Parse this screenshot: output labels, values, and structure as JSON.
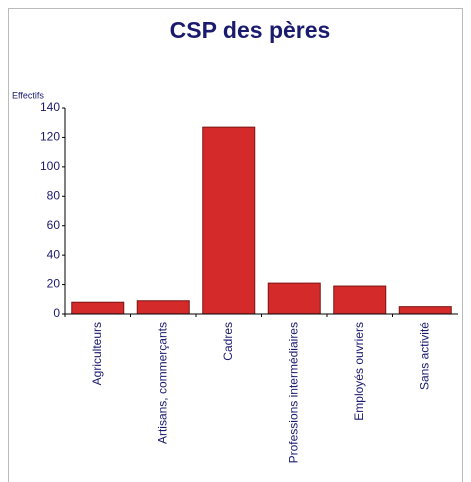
{
  "chart_data": {
    "type": "bar",
    "title": "CSP des pères",
    "y_label": "Effectifs",
    "categories": [
      "Agriculteurs",
      "Artisans, commerçants",
      "Cadres",
      "Professions intermédiaires",
      "Employés ouvriers",
      "Sans activité"
    ],
    "values": [
      8,
      9,
      127,
      21,
      19,
      5
    ],
    "color": "#d42a2a",
    "ylim": [
      0,
      140
    ],
    "yticks": [
      0,
      20,
      40,
      60,
      80,
      100,
      120,
      140
    ],
    "grid": false
  }
}
